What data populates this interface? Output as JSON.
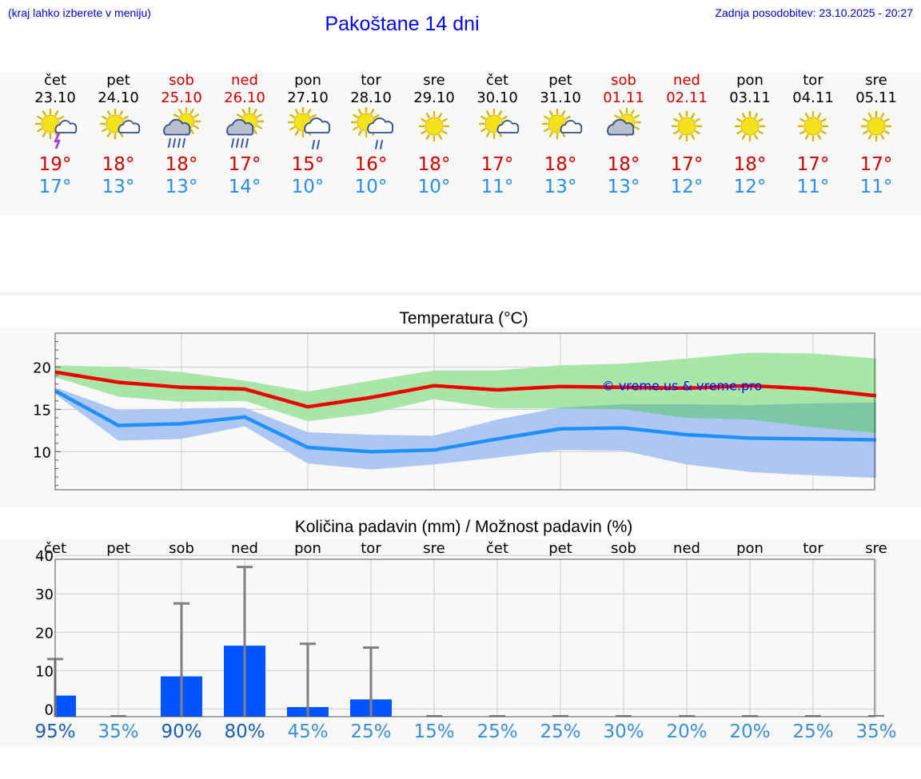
{
  "header": {
    "note": "(kraj lahko izberete v meniju)",
    "title": "Pakoštane 14 dni",
    "updated": "Zadnja posodobitev: 23.10.2025 - 20:27"
  },
  "days": [
    {
      "name": "čet",
      "date": "23.10",
      "weekend": false,
      "icon": "sun-thunderstorm-icon",
      "tmax": "19°",
      "tmin": "17°"
    },
    {
      "name": "pet",
      "date": "24.10",
      "weekend": false,
      "icon": "sun-cloud-icon",
      "tmax": "18°",
      "tmin": "13°"
    },
    {
      "name": "sob",
      "date": "25.10",
      "weekend": true,
      "icon": "sun-rain-icon",
      "tmax": "18°",
      "tmin": "13°"
    },
    {
      "name": "ned",
      "date": "26.10",
      "weekend": true,
      "icon": "sun-rain-icon",
      "tmax": "17°",
      "tmin": "14°"
    },
    {
      "name": "pon",
      "date": "27.10",
      "weekend": false,
      "icon": "sun-light-rain-icon",
      "tmax": "15°",
      "tmin": "10°"
    },
    {
      "name": "tor",
      "date": "28.10",
      "weekend": false,
      "icon": "sun-light-rain-icon",
      "tmax": "16°",
      "tmin": "10°"
    },
    {
      "name": "sre",
      "date": "29.10",
      "weekend": false,
      "icon": "sun-icon",
      "tmax": "18°",
      "tmin": "10°"
    },
    {
      "name": "čet",
      "date": "30.10",
      "weekend": false,
      "icon": "sun-cloud-icon",
      "tmax": "17°",
      "tmin": "11°"
    },
    {
      "name": "pet",
      "date": "31.10",
      "weekend": false,
      "icon": "sun-cloud-icon",
      "tmax": "18°",
      "tmin": "13°"
    },
    {
      "name": "sob",
      "date": "01.11",
      "weekend": true,
      "icon": "cloud-sun-icon",
      "tmax": "18°",
      "tmin": "13°"
    },
    {
      "name": "ned",
      "date": "02.11",
      "weekend": true,
      "icon": "sun-icon",
      "tmax": "17°",
      "tmin": "12°"
    },
    {
      "name": "pon",
      "date": "03.11",
      "weekend": false,
      "icon": "sun-icon",
      "tmax": "18°",
      "tmin": "12°"
    },
    {
      "name": "tor",
      "date": "04.11",
      "weekend": false,
      "icon": "sun-icon",
      "tmax": "17°",
      "tmin": "11°"
    },
    {
      "name": "sre",
      "date": "05.11",
      "weekend": false,
      "icon": "sun-icon",
      "tmax": "17°",
      "tmin": "11°"
    }
  ],
  "colors": {
    "max_line": "#ee0000",
    "min_line": "#1e90ff",
    "max_band": "#a8e6a8",
    "min_band": "#aec6f2",
    "overlap_band": "#7cc8a4",
    "bar": "#0055ff",
    "error_bar": "#808080",
    "watermark": "#0000ee",
    "pct_dark": "#1a5fb4",
    "pct_light": "#3d8fd8"
  },
  "chart_data": [
    {
      "type": "line",
      "title": "Temperatura (°C)",
      "watermark": "© vreme.us & vreme.pro",
      "ylim": [
        5.5,
        24
      ],
      "yticks": [
        10,
        15,
        20
      ],
      "grid": true,
      "series": [
        {
          "name": "max",
          "values": [
            19.4,
            18.2,
            17.6,
            17.4,
            15.3,
            16.4,
            17.8,
            17.3,
            17.7,
            17.6,
            17.5,
            17.8,
            17.4,
            16.6
          ],
          "low": [
            18.8,
            16.5,
            15.9,
            16.0,
            13.6,
            14.5,
            16.2,
            15.1,
            15.1,
            15.0,
            14.0,
            13.8,
            12.9,
            12.2
          ],
          "high": [
            20.2,
            20.0,
            19.4,
            18.4,
            17.1,
            18.4,
            19.6,
            19.6,
            20.2,
            20.4,
            21.0,
            21.7,
            21.6,
            21.0
          ]
        },
        {
          "name": "min",
          "values": [
            17.2,
            13.1,
            13.3,
            14.1,
            10.5,
            10.0,
            10.2,
            11.5,
            12.7,
            12.8,
            12.0,
            11.6,
            11.5,
            11.4
          ],
          "low": [
            16.8,
            11.3,
            11.5,
            13.0,
            8.6,
            7.9,
            8.5,
            9.3,
            10.2,
            10.1,
            8.5,
            7.6,
            7.2,
            6.9
          ],
          "high": [
            17.6,
            14.9,
            15.1,
            15.2,
            12.3,
            12.0,
            11.9,
            13.8,
            15.2,
            15.6,
            15.6,
            15.5,
            15.7,
            15.8
          ]
        }
      ]
    },
    {
      "type": "bar",
      "title": "Količina padavin (mm) / Možnost padavin (%)",
      "categories": [
        "čet",
        "pet",
        "sob",
        "ned",
        "pon",
        "tor",
        "sre",
        "čet",
        "pet",
        "sob",
        "ned",
        "pon",
        "tor",
        "sre"
      ],
      "ylim": [
        -2,
        39
      ],
      "yticks": [
        0,
        10,
        20,
        30,
        40
      ],
      "values": [
        3.5,
        0,
        8.5,
        16.5,
        0.5,
        2.5,
        0,
        0,
        0,
        0,
        0,
        0,
        0,
        0
      ],
      "error_max": [
        13,
        0,
        27.5,
        37,
        17,
        16,
        0,
        0,
        0,
        0,
        0,
        0,
        0,
        0
      ],
      "probability": [
        "95%",
        "35%",
        "90%",
        "80%",
        "45%",
        "25%",
        "15%",
        "25%",
        "25%",
        "30%",
        "20%",
        "20%",
        "25%",
        "35%"
      ],
      "probability_values": [
        95,
        35,
        90,
        80,
        45,
        25,
        15,
        25,
        25,
        30,
        20,
        20,
        25,
        35
      ]
    }
  ]
}
